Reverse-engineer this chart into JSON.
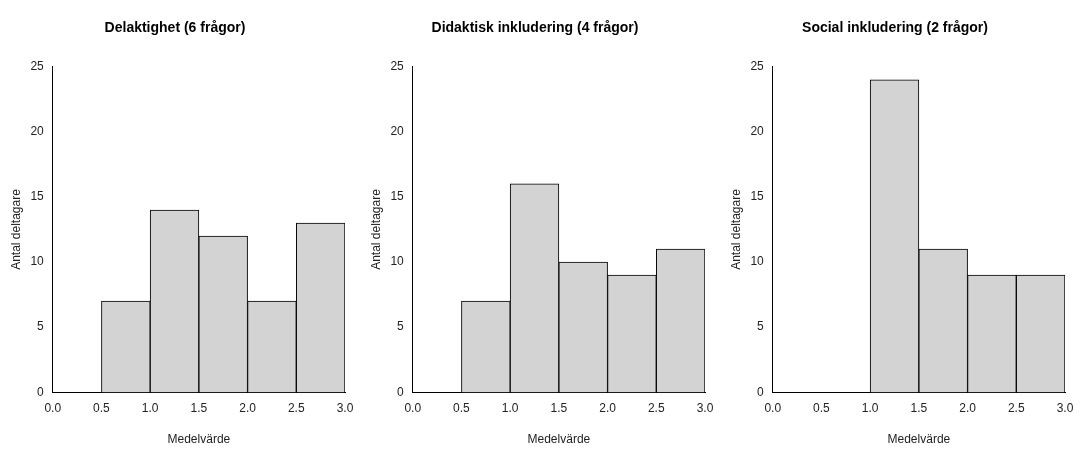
{
  "chart_data": [
    {
      "type": "histogram",
      "title": "Delaktighet (6 frågor)",
      "xlabel": "Medelvärde",
      "ylabel": "Antal deltagare",
      "bins": [
        0.5,
        1.0,
        1.5,
        2.0,
        2.5,
        3.0
      ],
      "values": [
        7,
        14,
        12,
        7,
        13
      ],
      "color": "#d3d3d3",
      "xlim": [
        0,
        3
      ],
      "xticks": [
        {
          "value": 0,
          "label": "0.0"
        },
        {
          "value": 0.5,
          "label": "0.5"
        },
        {
          "value": 1,
          "label": "1.0"
        },
        {
          "value": 1.5,
          "label": "1.5"
        },
        {
          "value": 2,
          "label": "2.0"
        },
        {
          "value": 2.5,
          "label": "2.5"
        },
        {
          "value": 3,
          "label": "3.0"
        }
      ],
      "ylim": [
        0,
        25
      ],
      "yticks": [
        0,
        5,
        10,
        15,
        20,
        25
      ],
      "grid": false,
      "legend": false
    },
    {
      "type": "histogram",
      "title": "Didaktisk inkludering (4 frågor)",
      "xlabel": "Medelvärde",
      "ylabel": "Antal deltagare",
      "bins": [
        0.5,
        1.0,
        1.5,
        2.0,
        2.5,
        3.0
      ],
      "values": [
        7,
        16,
        10,
        9,
        11
      ],
      "color": "#d3d3d3",
      "xlim": [
        0,
        3
      ],
      "xticks": [
        {
          "value": 0,
          "label": "0.0"
        },
        {
          "value": 0.5,
          "label": "0.5"
        },
        {
          "value": 1,
          "label": "1.0"
        },
        {
          "value": 1.5,
          "label": "1.5"
        },
        {
          "value": 2,
          "label": "2.0"
        },
        {
          "value": 2.5,
          "label": "2.5"
        },
        {
          "value": 3,
          "label": "3.0"
        }
      ],
      "ylim": [
        0,
        25
      ],
      "yticks": [
        0,
        5,
        10,
        15,
        20,
        25
      ],
      "grid": false,
      "legend": false
    },
    {
      "type": "histogram",
      "title": "Social inkludering (2 frågor)",
      "xlabel": "Medelvärde",
      "ylabel": "Antal deltagare",
      "bins": [
        1.0,
        1.5,
        2.0,
        2.5,
        3.0
      ],
      "values": [
        24,
        11,
        9,
        9
      ],
      "color": "#d3d3d3",
      "xlim": [
        0,
        3
      ],
      "xticks": [
        {
          "value": 0,
          "label": "0.0"
        },
        {
          "value": 0.5,
          "label": "0.5"
        },
        {
          "value": 1,
          "label": "1.0"
        },
        {
          "value": 1.5,
          "label": "1.5"
        },
        {
          "value": 2,
          "label": "2.0"
        },
        {
          "value": 2.5,
          "label": "2.5"
        },
        {
          "value": 3,
          "label": "3.0"
        }
      ],
      "ylim": [
        0,
        25
      ],
      "yticks": [
        0,
        5,
        10,
        15,
        20,
        25
      ],
      "grid": false,
      "legend": false
    }
  ]
}
